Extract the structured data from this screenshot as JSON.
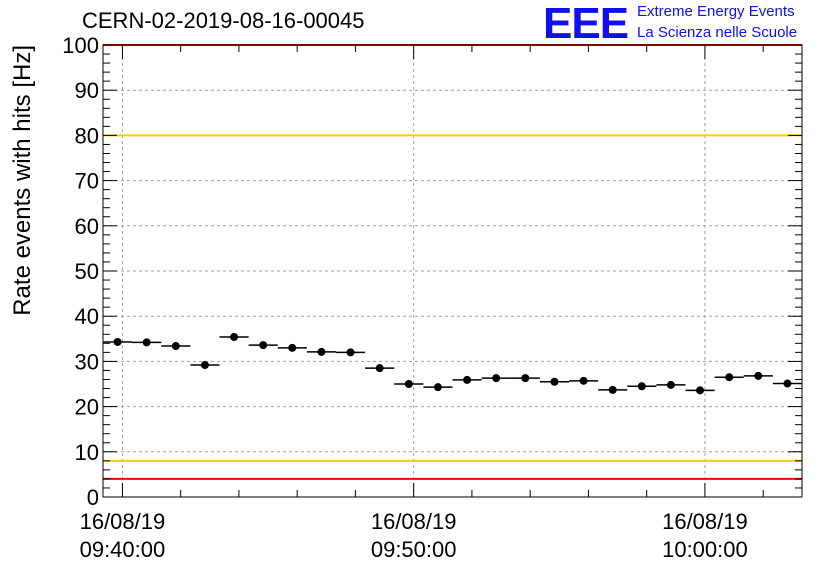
{
  "header": {
    "title": "CERN-02-2019-08-16-00045",
    "logo_text": "EEE",
    "logo_line1": "Extreme Energy Events",
    "logo_line2": "La Scienza nelle Scuole",
    "logo_color": "#1010ee"
  },
  "chart_data": {
    "type": "scatter",
    "title": "CERN-02-2019-08-16-00045",
    "ylabel": "Rate events with hits [Hz]",
    "xlabel": "",
    "ylim": [
      0,
      100
    ],
    "yticks": [
      0,
      10,
      20,
      30,
      40,
      50,
      60,
      70,
      80,
      90,
      100
    ],
    "xlim": [
      "09:39:20",
      "10:03:20"
    ],
    "xticks": [
      {
        "date": "16/08/19",
        "time": "09:40:00"
      },
      {
        "date": "16/08/19",
        "time": "09:50:00"
      },
      {
        "date": "16/08/19",
        "time": "10:00:00"
      }
    ],
    "grid": true,
    "reference_lines": [
      {
        "y": 100,
        "color": "#ff0000"
      },
      {
        "y": 80,
        "color": "#ffcc00"
      },
      {
        "y": 8,
        "color": "#ffcc00"
      },
      {
        "y": 4,
        "color": "#ff0000"
      }
    ],
    "points": [
      {
        "x": "09:39:50",
        "y": 34.3
      },
      {
        "x": "09:40:50",
        "y": 34.2
      },
      {
        "x": "09:41:50",
        "y": 33.4
      },
      {
        "x": "09:42:50",
        "y": 29.2
      },
      {
        "x": "09:43:50",
        "y": 35.4
      },
      {
        "x": "09:44:50",
        "y": 33.6
      },
      {
        "x": "09:45:50",
        "y": 33.0
      },
      {
        "x": "09:46:50",
        "y": 32.1
      },
      {
        "x": "09:47:50",
        "y": 32.0
      },
      {
        "x": "09:48:50",
        "y": 28.5
      },
      {
        "x": "09:49:50",
        "y": 25.0
      },
      {
        "x": "09:50:50",
        "y": 24.3
      },
      {
        "x": "09:51:50",
        "y": 25.9
      },
      {
        "x": "09:52:50",
        "y": 26.3
      },
      {
        "x": "09:53:50",
        "y": 26.3
      },
      {
        "x": "09:54:50",
        "y": 25.5
      },
      {
        "x": "09:55:50",
        "y": 25.7
      },
      {
        "x": "09:56:50",
        "y": 23.7
      },
      {
        "x": "09:57:50",
        "y": 24.5
      },
      {
        "x": "09:58:50",
        "y": 24.8
      },
      {
        "x": "09:59:50",
        "y": 23.6
      },
      {
        "x": "10:00:50",
        "y": 26.5
      },
      {
        "x": "10:01:50",
        "y": 26.8
      },
      {
        "x": "10:02:50",
        "y": 25.1
      }
    ],
    "bin_width_seconds": 60,
    "marker_color": "#000000"
  }
}
